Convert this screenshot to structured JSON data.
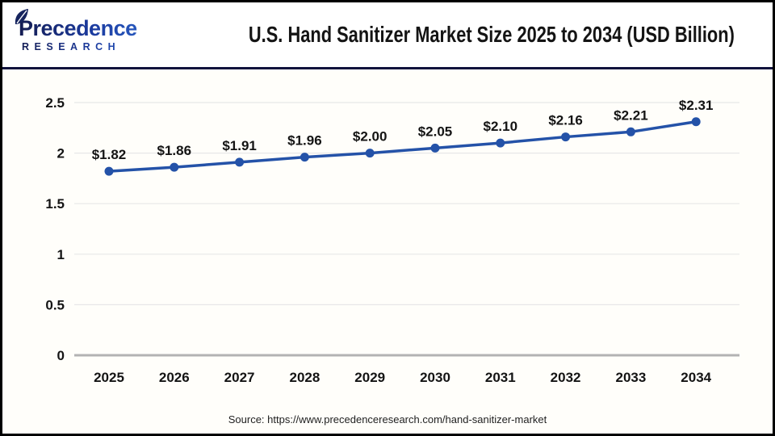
{
  "header": {
    "logo": {
      "name": "Precedence",
      "subtitle": "RESEARCH"
    },
    "title": "U.S. Hand Sanitizer Market Size 2025 to 2034 (USD Billion)"
  },
  "chart_data": {
    "type": "line",
    "title": "U.S. Hand Sanitizer Market Size 2025 to 2034 (USD Billion)",
    "categories": [
      "2025",
      "2026",
      "2027",
      "2028",
      "2029",
      "2030",
      "2031",
      "2032",
      "2033",
      "2034"
    ],
    "values": [
      1.82,
      1.86,
      1.91,
      1.96,
      2.0,
      2.05,
      2.1,
      2.16,
      2.21,
      2.31
    ],
    "point_labels": [
      "$1.82",
      "$1.86",
      "$1.91",
      "$1.96",
      "$2.00",
      "$2.05",
      "$2.10",
      "$2.16",
      "$2.21",
      "$2.31"
    ],
    "xlabel": "",
    "ylabel": "",
    "ylim": [
      0,
      2.5
    ],
    "yticks": [
      0,
      0.5,
      1,
      1.5,
      2,
      2.5
    ],
    "ytick_labels": [
      "0",
      "0.5",
      "1",
      "1.5",
      "2",
      "2.5"
    ],
    "grid": "horizontal",
    "legend": "none",
    "marker": "circle",
    "line_color": "#2452a8"
  },
  "footer": {
    "source": "Source: https://www.precedenceresearch.com/hand-sanitizer-market"
  },
  "colors": {
    "line": "#2452a8",
    "divider_navy": "#10123d",
    "grid_line": "#e7e7e7",
    "zero_axis": "#b3b3b3",
    "border": "#000000",
    "logo_navy": "#141c52",
    "logo_blue": "#3070d8"
  }
}
